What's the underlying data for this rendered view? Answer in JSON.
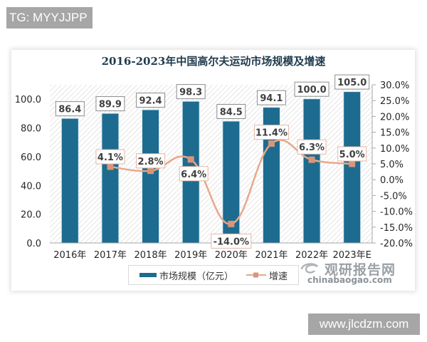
{
  "watermarks": {
    "top": "TG: MYYJJPP",
    "bottom": "www.jlcdzm.com"
  },
  "chart_title": "2016-2023年中国高尔夫运动市场规模及增速",
  "legend": {
    "bar_label": "市场规模（亿元）",
    "line_label": "增速"
  },
  "source_logo": {
    "cn": "观研报告网",
    "en": "chinabaogao.com"
  },
  "colors": {
    "bar": "#1d6b8f",
    "line": "#e8a88a",
    "marker": "#d9957a",
    "axis_text": "#333333"
  },
  "chart_data": {
    "type": "bar",
    "title": "2016-2023年中国高尔夫运动市场规模及增速",
    "categories": [
      "2016年",
      "2017年",
      "2018年",
      "2019年",
      "2020年",
      "2021年",
      "2022年",
      "2023年E"
    ],
    "series": [
      {
        "name": "市场规模（亿元）",
        "type": "bar",
        "axis": "left",
        "values": [
          86.4,
          89.9,
          92.4,
          98.3,
          84.5,
          94.1,
          100.0,
          105.0
        ],
        "labels": [
          "86.4",
          "89.9",
          "92.4",
          "98.3",
          "84.5",
          "94.1",
          "100.0",
          "105.0"
        ]
      },
      {
        "name": "增速",
        "type": "line",
        "axis": "right",
        "values": [
          null,
          4.1,
          2.8,
          6.4,
          -14.0,
          11.4,
          6.3,
          5.0
        ],
        "labels": [
          "",
          "4.1%",
          "2.8%",
          "6.4%",
          "-14.0%",
          "11.4%",
          "6.3%",
          "5.0%"
        ]
      }
    ],
    "y_left": {
      "ylim": [
        0,
        110
      ],
      "ticks": [
        "0.0",
        "20.0",
        "40.0",
        "60.0",
        "80.0",
        "100.0"
      ],
      "tick_values": [
        0,
        20,
        40,
        60,
        80,
        100
      ]
    },
    "y_right": {
      "ylim": [
        -20,
        30
      ],
      "ticks": [
        "30.0%",
        "25.0%",
        "20.0%",
        "15.0%",
        "10.0%",
        "5.0%",
        "0.0%",
        "-5.0%",
        "-10.0%",
        "-15.0%",
        "-20.0%"
      ],
      "tick_values": [
        30,
        25,
        20,
        15,
        10,
        5,
        0,
        -5,
        -10,
        -15,
        -20
      ]
    },
    "xlabel": "",
    "ylabel": "",
    "legend_position": "bottom",
    "grid": false,
    "plot_background": "diagonal hatch"
  }
}
